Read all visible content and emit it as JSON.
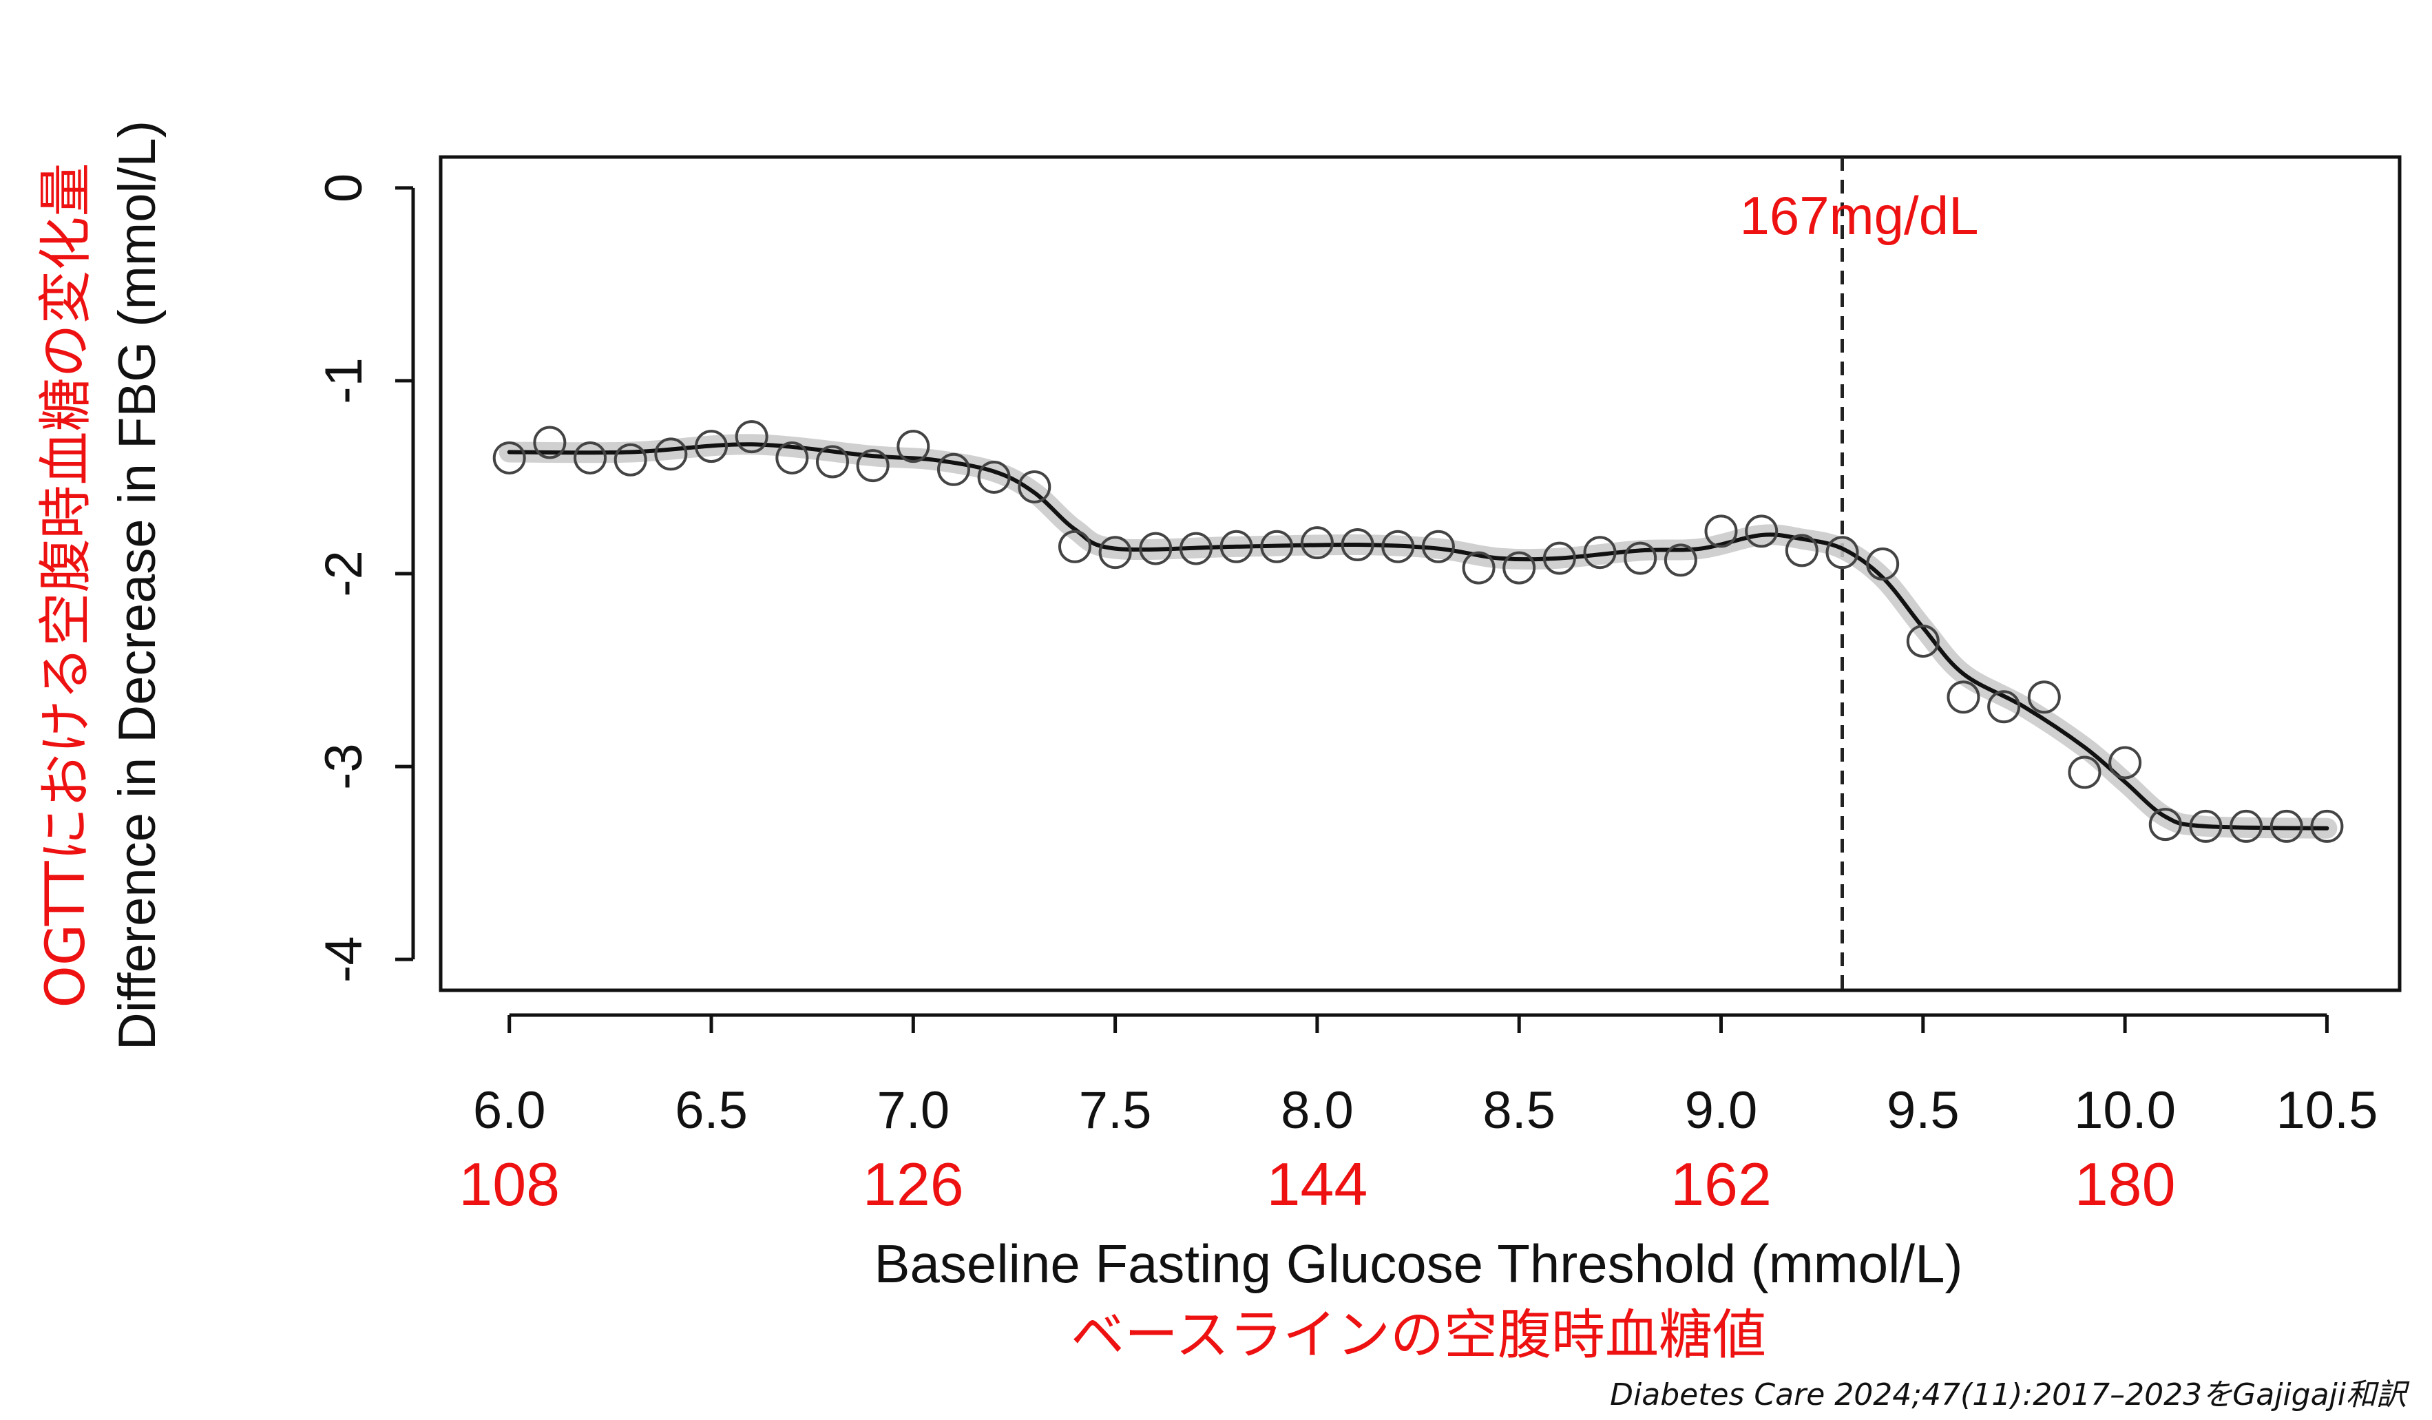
{
  "chart_data": {
    "type": "scatter",
    "xlabel": "Baseline Fasting Glucose Threshold (mmol/L)",
    "xlabel_jp": "ベースラインの空腹時血糖値",
    "ylabel": "Difference in Decrease in FBG (mmol/L)",
    "ylabel_jp": "OGTTにおける空腹時血糖の変化量",
    "xlim": [
      5.83,
      10.68
    ],
    "ylim": [
      -4.16,
      0.16
    ],
    "x_ticks": [
      "6.0",
      "6.5",
      "7.0",
      "7.5",
      "8.0",
      "8.5",
      "9.0",
      "9.5",
      "10.0",
      "10.5"
    ],
    "y_ticks": [
      "0",
      "-1",
      "-2",
      "-3",
      "-4"
    ],
    "mgdl_ticks": [
      {
        "x": 6.0,
        "label": "108"
      },
      {
        "x": 7.0,
        "label": "126"
      },
      {
        "x": 8.0,
        "label": "144"
      },
      {
        "x": 9.0,
        "label": "162"
      },
      {
        "x": 10.0,
        "label": "180"
      }
    ],
    "threshold": {
      "x": 9.3,
      "label": "167mg/dL",
      "style": "dashed"
    },
    "grid": false,
    "points": {
      "x": [
        6.0,
        6.1,
        6.2,
        6.3,
        6.4,
        6.5,
        6.6,
        6.7,
        6.8,
        6.9,
        7.0,
        7.1,
        7.2,
        7.3,
        7.4,
        7.5,
        7.6,
        7.7,
        7.8,
        7.9,
        8.0,
        8.1,
        8.2,
        8.3,
        8.4,
        8.5,
        8.6,
        8.7,
        8.8,
        8.9,
        9.0,
        9.1,
        9.2,
        9.3,
        9.4,
        9.5,
        9.6,
        9.7,
        9.8,
        9.9,
        10.0,
        10.1,
        10.2,
        10.3,
        10.4,
        10.5
      ],
      "y": [
        -1.4,
        -1.32,
        -1.4,
        -1.41,
        -1.38,
        -1.34,
        -1.29,
        -1.4,
        -1.42,
        -1.44,
        -1.34,
        -1.46,
        -1.5,
        -1.55,
        -1.86,
        -1.89,
        -1.87,
        -1.87,
        -1.86,
        -1.86,
        -1.84,
        -1.85,
        -1.86,
        -1.86,
        -1.97,
        -1.97,
        -1.92,
        -1.89,
        -1.92,
        -1.93,
        -1.78,
        -1.78,
        -1.88,
        -1.89,
        -1.95,
        -2.35,
        -2.64,
        -2.69,
        -2.64,
        -3.03,
        -2.98,
        -3.3,
        -3.31,
        -3.31,
        -3.31,
        -3.31
      ]
    },
    "smooth": {
      "x": [
        6.0,
        6.3,
        6.6,
        6.9,
        7.05,
        7.2,
        7.3,
        7.4,
        7.5,
        7.8,
        8.1,
        8.3,
        8.45,
        8.6,
        8.8,
        8.95,
        9.1,
        9.2,
        9.3,
        9.4,
        9.5,
        9.6,
        9.75,
        9.9,
        10.0,
        10.1,
        10.2,
        10.5
      ],
      "y": [
        -1.37,
        -1.37,
        -1.33,
        -1.39,
        -1.41,
        -1.47,
        -1.58,
        -1.77,
        -1.87,
        -1.86,
        -1.85,
        -1.87,
        -1.92,
        -1.92,
        -1.88,
        -1.87,
        -1.8,
        -1.82,
        -1.87,
        -2.02,
        -2.28,
        -2.52,
        -2.69,
        -2.9,
        -3.08,
        -3.26,
        -3.31,
        -3.32
      ]
    },
    "colors": {
      "line": "#111111",
      "band": "#c8c8c8",
      "accent": "#ee1111"
    }
  },
  "citation": "Diabetes Care 2024;47(11):2017–2023をGajigaji和訳"
}
